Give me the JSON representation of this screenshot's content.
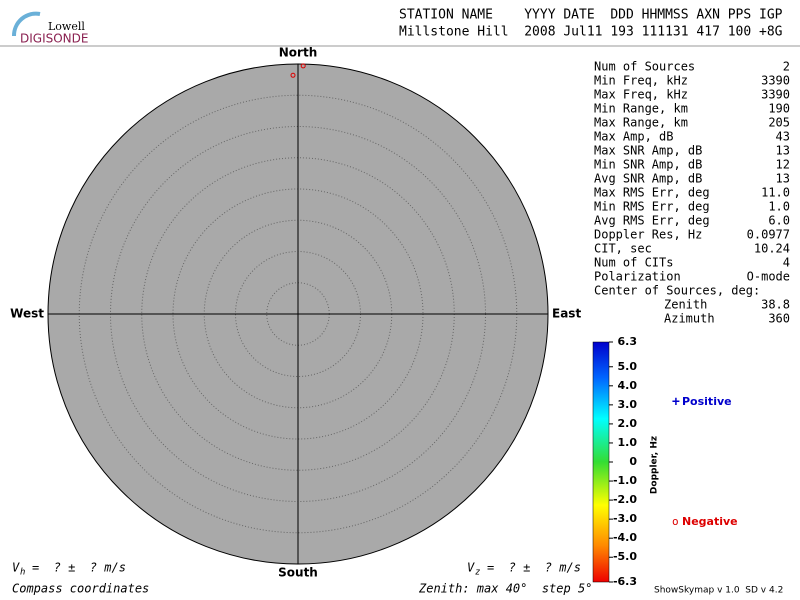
{
  "header": {
    "logo_top": "Lowell",
    "logo_bottom": "DIGISONDE",
    "columns_line": "STATION NAME    YYYY DATE  DDD HHMMSS AXN PPS IGP",
    "values_line": "Millstone Hill  2008 Jul11 193 111131 417 100 +8G"
  },
  "chart_data": {
    "type": "skymap",
    "directions": {
      "north": "North",
      "south": "South",
      "east": "East",
      "west": "West"
    },
    "rlim": [
      0,
      40
    ],
    "rings": [
      5,
      10,
      15,
      20,
      25,
      30,
      35
    ],
    "points": [
      {
        "zenith": 39.7,
        "azimuth": 1.2,
        "color": "#dd0000"
      },
      {
        "zenith": 38.2,
        "azimuth": 358.8,
        "color": "#dd0000"
      }
    ]
  },
  "stats": [
    {
      "label": "Num of Sources",
      "value": "2"
    },
    {
      "label": "Min Freq, kHz",
      "value": "3390"
    },
    {
      "label": "Max Freq, kHz",
      "value": "3390"
    },
    {
      "label": "Min Range, km",
      "value": "190"
    },
    {
      "label": "Max Range, km",
      "value": "205"
    },
    {
      "label": "Max Amp, dB",
      "value": "43"
    },
    {
      "label": "Max SNR Amp, dB",
      "value": "13"
    },
    {
      "label": "Min SNR Amp, dB",
      "value": "12"
    },
    {
      "label": "Avg SNR Amp, dB",
      "value": "13"
    },
    {
      "label": "Max RMS Err, deg",
      "value": "11.0"
    },
    {
      "label": "Min RMS Err, deg",
      "value": "1.0"
    },
    {
      "label": "Avg RMS Err, deg",
      "value": "6.0"
    },
    {
      "label": "Doppler Res, Hz",
      "value": "0.0977"
    },
    {
      "label": "CIT, sec",
      "value": "10.24"
    },
    {
      "label": "Num of CITs",
      "value": "4"
    },
    {
      "label": "Polarization",
      "value": "O-mode"
    },
    {
      "label": "Center of Sources, deg:"
    },
    {
      "label": "Zenith",
      "value": "38.8",
      "indent": true
    },
    {
      "label": "Azimuth",
      "value": "360",
      "indent": true
    }
  ],
  "colorbar": {
    "label": "Doppler, Hz",
    "clim": [
      -6.3,
      6.3
    ],
    "ticks": [
      6.3,
      {
        "value": 5,
        "label": "5.0"
      },
      {
        "value": 4,
        "label": "4.0"
      },
      {
        "value": 3,
        "label": "3.0"
      },
      {
        "value": 2,
        "label": "2.0"
      },
      {
        "value": 1,
        "label": "1.0"
      },
      0,
      {
        "value": -1,
        "label": "-1.0"
      },
      {
        "value": -2,
        "label": "-2.0"
      },
      {
        "value": -3,
        "label": "-3.0"
      },
      {
        "value": -4,
        "label": "-4.0"
      },
      {
        "value": -5,
        "label": "-5.0"
      },
      -6.3
    ]
  },
  "legend": {
    "positive_symbol": "+",
    "positive": "Positive",
    "negative_symbol": "o",
    "negative": "Negative"
  },
  "footer": {
    "vh_symbol": "V",
    "vh_sub": "h",
    "vh_text": "=  ? ±  ? m/s",
    "vz_symbol": "V",
    "vz_sub": "z",
    "vz_text": "=  ? ±  ? m/s",
    "coords": "Compass coordinates",
    "zenith_info": "Zenith: max 40°  step 5°",
    "version": "ShowSkymap v 1.0  SD v 4.2"
  }
}
